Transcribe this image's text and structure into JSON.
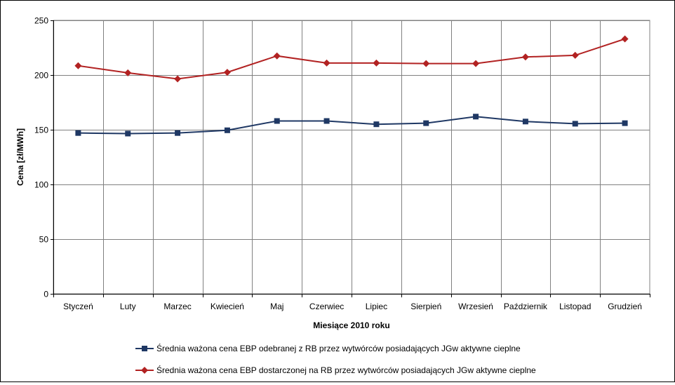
{
  "chart_data": {
    "type": "line",
    "title": "",
    "xlabel": "Miesiące 2010  roku",
    "ylabel": "Cena [zł/MWh]",
    "ylim": [
      0,
      250
    ],
    "yticks": [
      0,
      50,
      100,
      150,
      200,
      250
    ],
    "grid": true,
    "legend_position": "bottom",
    "categories": [
      "Styczeń",
      "Luty",
      "Marzec",
      "Kwiecień",
      "Maj",
      "Czerwiec",
      "Lipiec",
      "Sierpień",
      "Wrzesień",
      "Październik",
      "Listopad",
      "Grudzień"
    ],
    "series": [
      {
        "name": "Średnia ważona cena EBP odebranej z RB przez wytwórców posiadających JGw aktywne cieplne",
        "color": "#1F3864",
        "marker": "square",
        "values": [
          147,
          146.5,
          147,
          149.5,
          158,
          158,
          155,
          156,
          162,
          157.5,
          155.5,
          156
        ]
      },
      {
        "name": "Średnia ważona cena EBP dostarczonej na RB przez wytwórców posiadających JGw aktywne cieplne",
        "color": "#B22222",
        "marker": "diamond",
        "values": [
          208.5,
          202,
          196.5,
          202.5,
          217.5,
          211,
          211,
          210.5,
          210.5,
          216.5,
          218,
          233
        ]
      }
    ]
  }
}
